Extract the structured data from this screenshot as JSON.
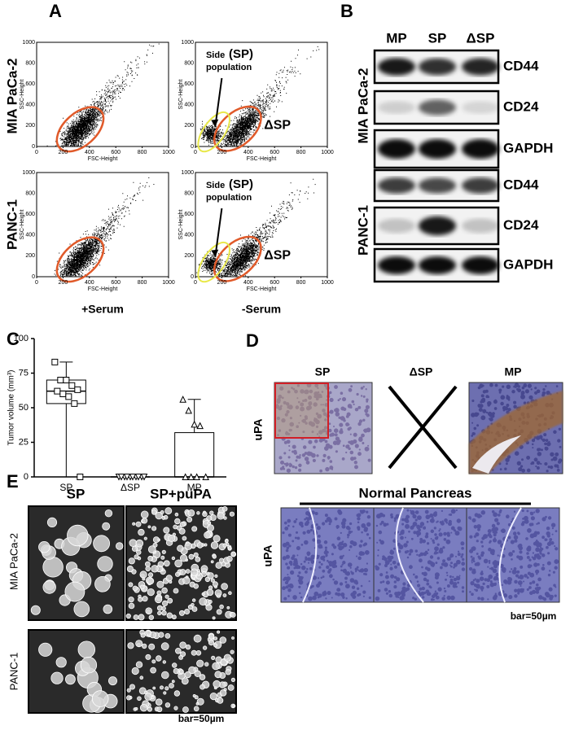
{
  "panel_a": {
    "label": "A",
    "rows": [
      "MIA PaCa-2",
      "PANC-1"
    ],
    "columns": [
      "+Serum",
      "-Serum"
    ],
    "xlabel": "FSC-Height",
    "ylabel": "SSC-Height",
    "ticks": [
      0,
      200,
      400,
      600,
      800,
      1000
    ],
    "annotation": [
      "Side",
      "(SP)",
      "population"
    ],
    "gate": "ΔSP"
  },
  "panel_b": {
    "label": "B",
    "lanes": [
      "MP",
      "SP",
      "ΔSP"
    ],
    "cell_lines": [
      "MIA PaCa-2",
      "PANC-1"
    ],
    "proteins": [
      "CD44",
      "CD24",
      "GAPDH",
      "CD44",
      "CD24",
      "GAPDH"
    ]
  },
  "chart_data": {
    "type": "box",
    "label": "C",
    "ylabel": "Tumor volume (mm³)",
    "categories": [
      "SP",
      "ΔSP",
      "MP"
    ],
    "ylim": [
      0,
      100
    ],
    "yticks": [
      0,
      25,
      50,
      75,
      100
    ],
    "boxes": [
      {
        "min": 0,
        "q1": 53,
        "median": 62,
        "q3": 70,
        "max": 83
      },
      {
        "min": 0,
        "q1": 0,
        "median": 0,
        "q3": 0,
        "max": 0
      },
      {
        "min": 0,
        "q1": 0,
        "median": 0,
        "q3": 32,
        "max": 56
      }
    ],
    "points": [
      [
        83,
        70,
        70,
        66,
        63,
        62,
        60,
        58,
        53,
        0
      ],
      [
        0,
        0,
        0,
        0,
        0,
        0,
        0,
        0,
        0,
        0
      ],
      [
        56,
        48,
        38,
        37,
        0,
        0,
        0,
        0
      ]
    ]
  },
  "panel_d": {
    "label": "D",
    "columns": [
      "SP",
      "ΔSP",
      "MP"
    ],
    "row": "uPA"
  },
  "panel_e": {
    "label": "E",
    "columns": [
      "SP",
      "SP+puPA"
    ],
    "rows": [
      "MIA PaCa-2",
      "PANC-1"
    ],
    "scale": "bar=50µm",
    "normal_title": "Normal Pancreas",
    "normal_row": "uPA",
    "normal_scale": "bar=50µm"
  }
}
